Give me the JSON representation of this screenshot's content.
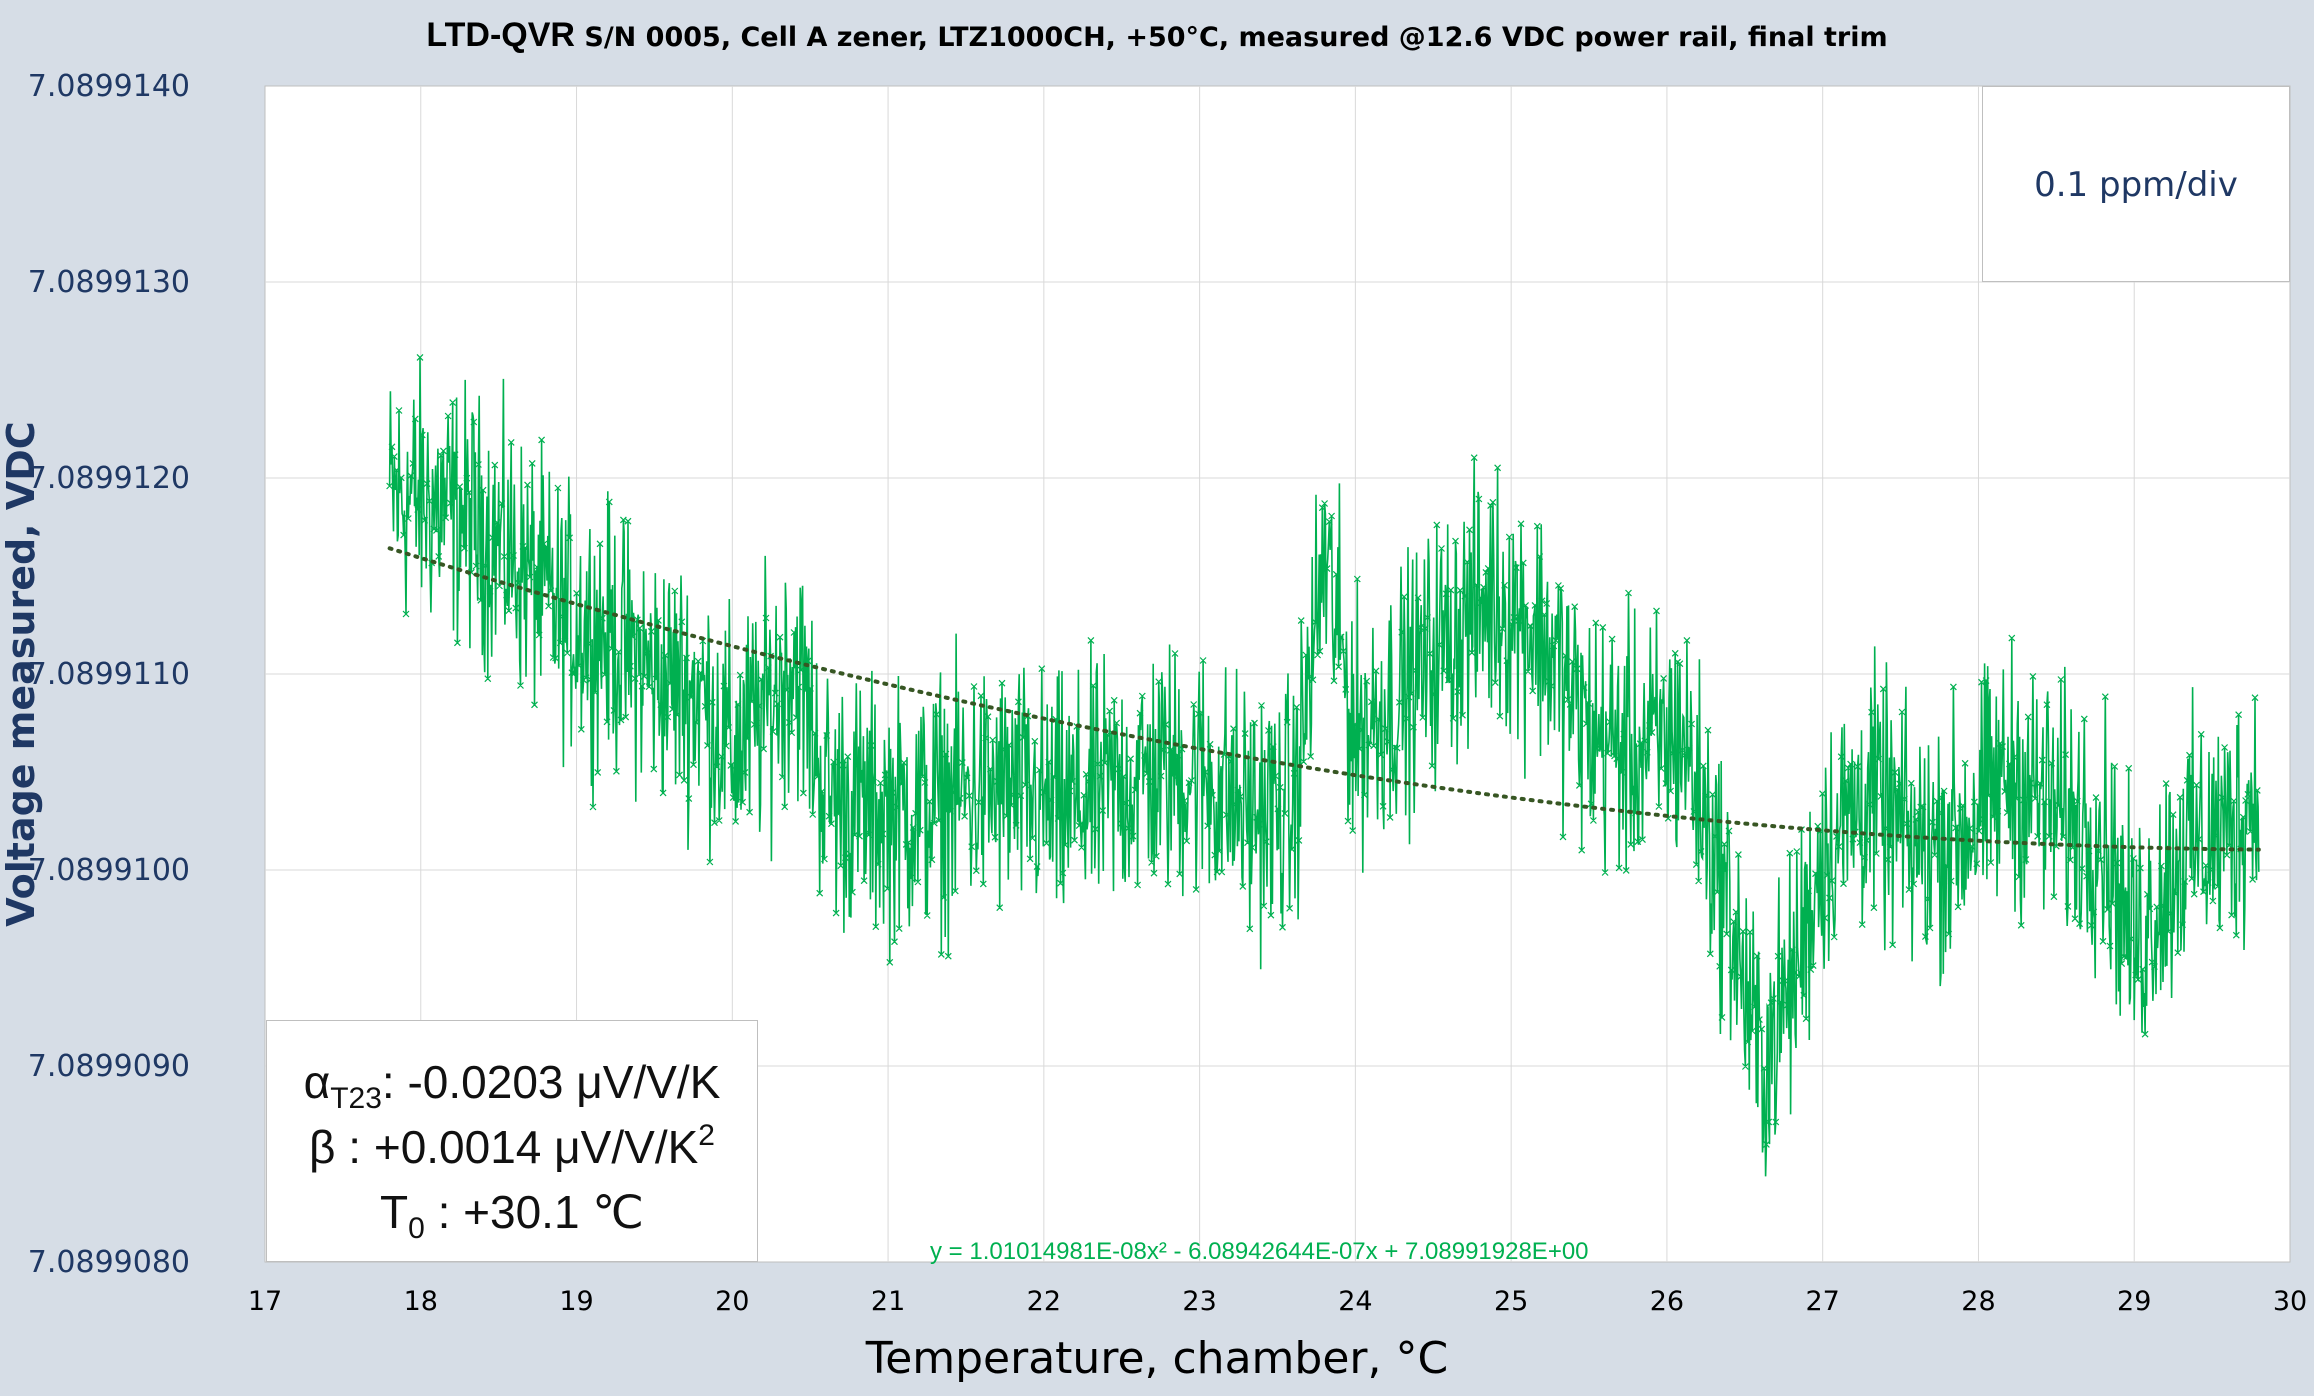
{
  "chart_data": {
    "type": "scatter",
    "title_bold": "LTD-QVR",
    "title_rest": " S/N 0005, Cell A zener, LTZ1000CH, +50°C, measured @12.6 VDC power rail, final trim",
    "xlabel": "Temperature, chamber, °C",
    "ylabel": "Voltage measured, VDC",
    "xlim": [
      17,
      30
    ],
    "ylim": [
      7.089908,
      7.089914
    ],
    "x_ticks": [
      "17",
      "18",
      "19",
      "20",
      "21",
      "22",
      "23",
      "24",
      "25",
      "26",
      "27",
      "28",
      "29",
      "30"
    ],
    "y_ticks": [
      "7.0899080",
      "7.0899090",
      "7.0899100",
      "7.0899110",
      "7.0899120",
      "7.0899130",
      "7.0899140"
    ],
    "grid": true,
    "series": [
      {
        "color": "#00b050",
        "marker": "x",
        "x": [
          17.8,
          18.0,
          18.3,
          18.6,
          18.9,
          19.2,
          19.5,
          19.8,
          20.0,
          20.2,
          20.4,
          20.6,
          20.9,
          21.2,
          21.5,
          21.8,
          22.1,
          22.4,
          22.7,
          23.0,
          23.3,
          23.6,
          23.8,
          24.0,
          24.3,
          24.6,
          24.9,
          25.2,
          25.5,
          25.8,
          26.1,
          26.4,
          26.6,
          26.8,
          27.0,
          27.3,
          27.6,
          27.9,
          28.2,
          28.5,
          28.8,
          29.0,
          29.3,
          29.6,
          29.8
        ],
        "y": [
          7.0899119,
          7.0899119,
          7.0899118,
          7.0899116,
          7.0899113,
          7.0899112,
          7.089911,
          7.0899109,
          7.0899106,
          7.0899108,
          7.0899111,
          7.0899104,
          7.0899103,
          7.0899103,
          7.0899104,
          7.0899104,
          7.0899103,
          7.0899104,
          7.0899105,
          7.0899105,
          7.0899103,
          7.0899103,
          7.0899116,
          7.0899107,
          7.0899109,
          7.0899112,
          7.0899114,
          7.0899112,
          7.0899107,
          7.0899106,
          7.0899107,
          7.0899098,
          7.089909,
          7.0899094,
          7.0899101,
          7.0899104,
          7.0899101,
          7.0899102,
          7.0899105,
          7.0899103,
          7.0899102,
          7.0899096,
          7.0899101,
          7.0899102,
          7.0899104
        ],
        "noise": 4e-07
      }
    ],
    "trendline": {
      "type": "polynomial-2",
      "color": "#375623",
      "equation": "y = 1.01014981E-08x² - 6.08942644E-07x + 7.08991928E+00",
      "x_range": [
        17.8,
        29.8
      ]
    },
    "annotations": {
      "resolution": "0.1 ppm/div",
      "alpha_symbol": "α",
      "alpha_sub": "T23",
      "alpha_text": ": -0.0203  μV/V/K",
      "beta_text": "β : +0.0014 μV/V/K",
      "beta_sup": "2",
      "t0_symbol": "T",
      "t0_sub": "0",
      "t0_text": " : +30.1 ℃"
    }
  }
}
